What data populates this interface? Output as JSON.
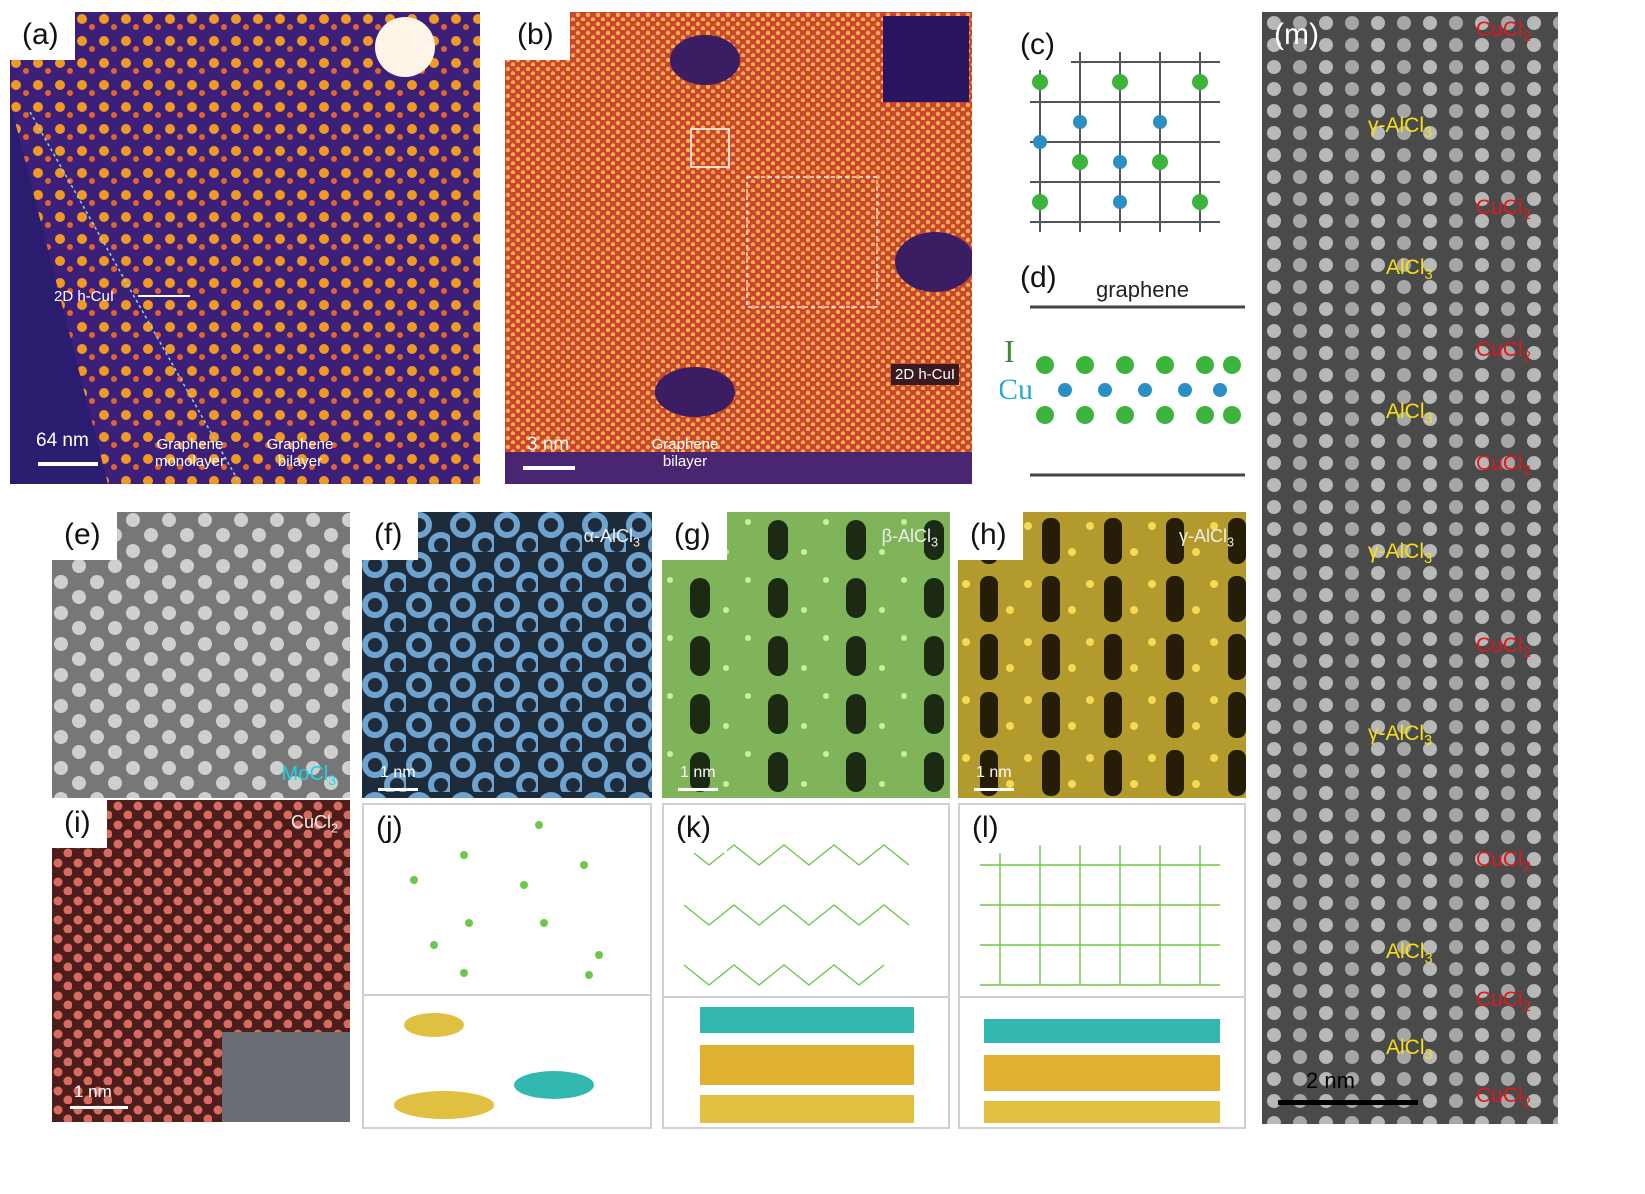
{
  "panels": {
    "a": {
      "label": "(a)",
      "arrow_label": "2D h-CuI",
      "scale": "64 nm",
      "region_left": "Graphene monolayer",
      "region_right": "Graphene bilayer"
    },
    "b": {
      "label": "(b)",
      "material": "2D h-CuI",
      "scale": "3 nm",
      "region": "Graphene bilayer"
    },
    "c": {
      "label": "(c)"
    },
    "d": {
      "label": "(d)",
      "top_layer": "graphene",
      "atom_I": "I",
      "atom_Cu": "Cu"
    },
    "e": {
      "label": "(e)",
      "material": "MoCl",
      "material_sub": "3"
    },
    "f": {
      "label": "(f)",
      "material": "α-AlCl",
      "material_sub": "3",
      "scale": "1 nm"
    },
    "g": {
      "label": "(g)",
      "material": "β-AlCl",
      "material_sub": "3",
      "scale": "1 nm"
    },
    "h": {
      "label": "(h)",
      "material": "γ-AlCl",
      "material_sub": "3",
      "scale": "1 nm"
    },
    "i": {
      "label": "(i)",
      "material": "CuCl",
      "material_sub": "2",
      "scale": "1 nm"
    },
    "j": {
      "label": "(j)"
    },
    "k": {
      "label": "(k)"
    },
    "l": {
      "label": "(l)"
    },
    "m": {
      "label": "(m)",
      "scale": "2 nm",
      "layers": [
        {
          "text": "CuCl",
          "sub": "2",
          "color": "red"
        },
        {
          "text": "γ-AlCl",
          "sub": "3",
          "color": "yellow"
        },
        {
          "text": "CuCl",
          "sub": "2",
          "color": "red"
        },
        {
          "text": "AlCl",
          "sub": "3",
          "color": "yellow"
        },
        {
          "text": "CuCl",
          "sub": "2",
          "color": "red"
        },
        {
          "text": "AlCl",
          "sub": "3",
          "color": "yellow"
        },
        {
          "text": "CuCl",
          "sub": "2",
          "color": "red"
        },
        {
          "text": "γ-AlCl",
          "sub": "3",
          "color": "yellow"
        },
        {
          "text": "CuCl",
          "sub": "2",
          "color": "red"
        },
        {
          "text": "γ-AlCl",
          "sub": "3",
          "color": "yellow"
        },
        {
          "text": "CuCl",
          "sub": "2",
          "color": "red"
        },
        {
          "text": "AlCl",
          "sub": "3",
          "color": "yellow"
        },
        {
          "text": "CuCl",
          "sub": "2",
          "color": "red"
        },
        {
          "text": "AlCl",
          "sub": "3",
          "color": "yellow"
        },
        {
          "text": "CuCl",
          "sub": "2",
          "color": "red"
        }
      ]
    }
  },
  "colors": {
    "label_red": "#e8141b",
    "label_yellow": "#f5e01a",
    "mocl3_label": "#19d6e8",
    "cu_atom": "#2a8fc4",
    "i_atom": "#3cb43c"
  }
}
